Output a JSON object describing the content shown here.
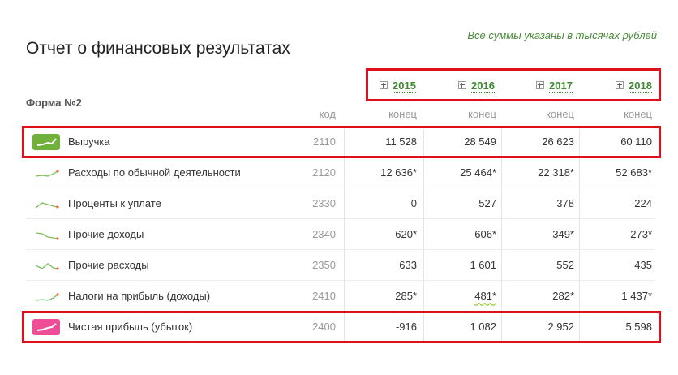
{
  "header": {
    "title": "Отчет о финансовых результатах",
    "note": "Все суммы указаны в тысячах рублей",
    "form_label": "Форма №2"
  },
  "years": [
    "2015",
    "2016",
    "2017",
    "2018"
  ],
  "columns": {
    "code": "код",
    "period": "конец"
  },
  "rows": [
    {
      "label": "Выручка",
      "code": "2110",
      "values": [
        "11 528",
        "28 549",
        "26 623",
        "60 110"
      ],
      "trend_icon": "trend-up-badge-icon"
    },
    {
      "label": "Расходы по обычной деятельности",
      "code": "2120",
      "values": [
        "12 636*",
        "25 464*",
        "22 318*",
        "52 683*"
      ],
      "trend_icon": "trend-up-icon"
    },
    {
      "label": "Проценты к уплате",
      "code": "2330",
      "values": [
        "0",
        "527",
        "378",
        "224"
      ],
      "trend_icon": "trend-peak-icon"
    },
    {
      "label": "Прочие доходы",
      "code": "2340",
      "values": [
        "620*",
        "606*",
        "349*",
        "273*"
      ],
      "trend_icon": "trend-down-icon"
    },
    {
      "label": "Прочие расходы",
      "code": "2350",
      "values": [
        "633",
        "1 601",
        "552",
        "435"
      ],
      "trend_icon": "trend-zigzag-icon"
    },
    {
      "label": "Налоги на прибыль (доходы)",
      "code": "2410",
      "values": [
        "285*",
        "481*",
        "282*",
        "1 437*"
      ],
      "trend_icon": "trend-up-icon"
    },
    {
      "label": "Чистая прибыль (убыток)",
      "code": "2400",
      "values": [
        "-916",
        "1 082",
        "2 952",
        "5 598"
      ],
      "trend_icon": "trend-up-badge-icon"
    }
  ],
  "colors": {
    "accent_green": "#3c8a2e",
    "revenue_badge": "#6fb13a",
    "profit_badge": "#ee4e98",
    "highlight_box": "#e0101a",
    "spark_line": "#7cbf5a",
    "spark_dot": "#e86a3a"
  }
}
